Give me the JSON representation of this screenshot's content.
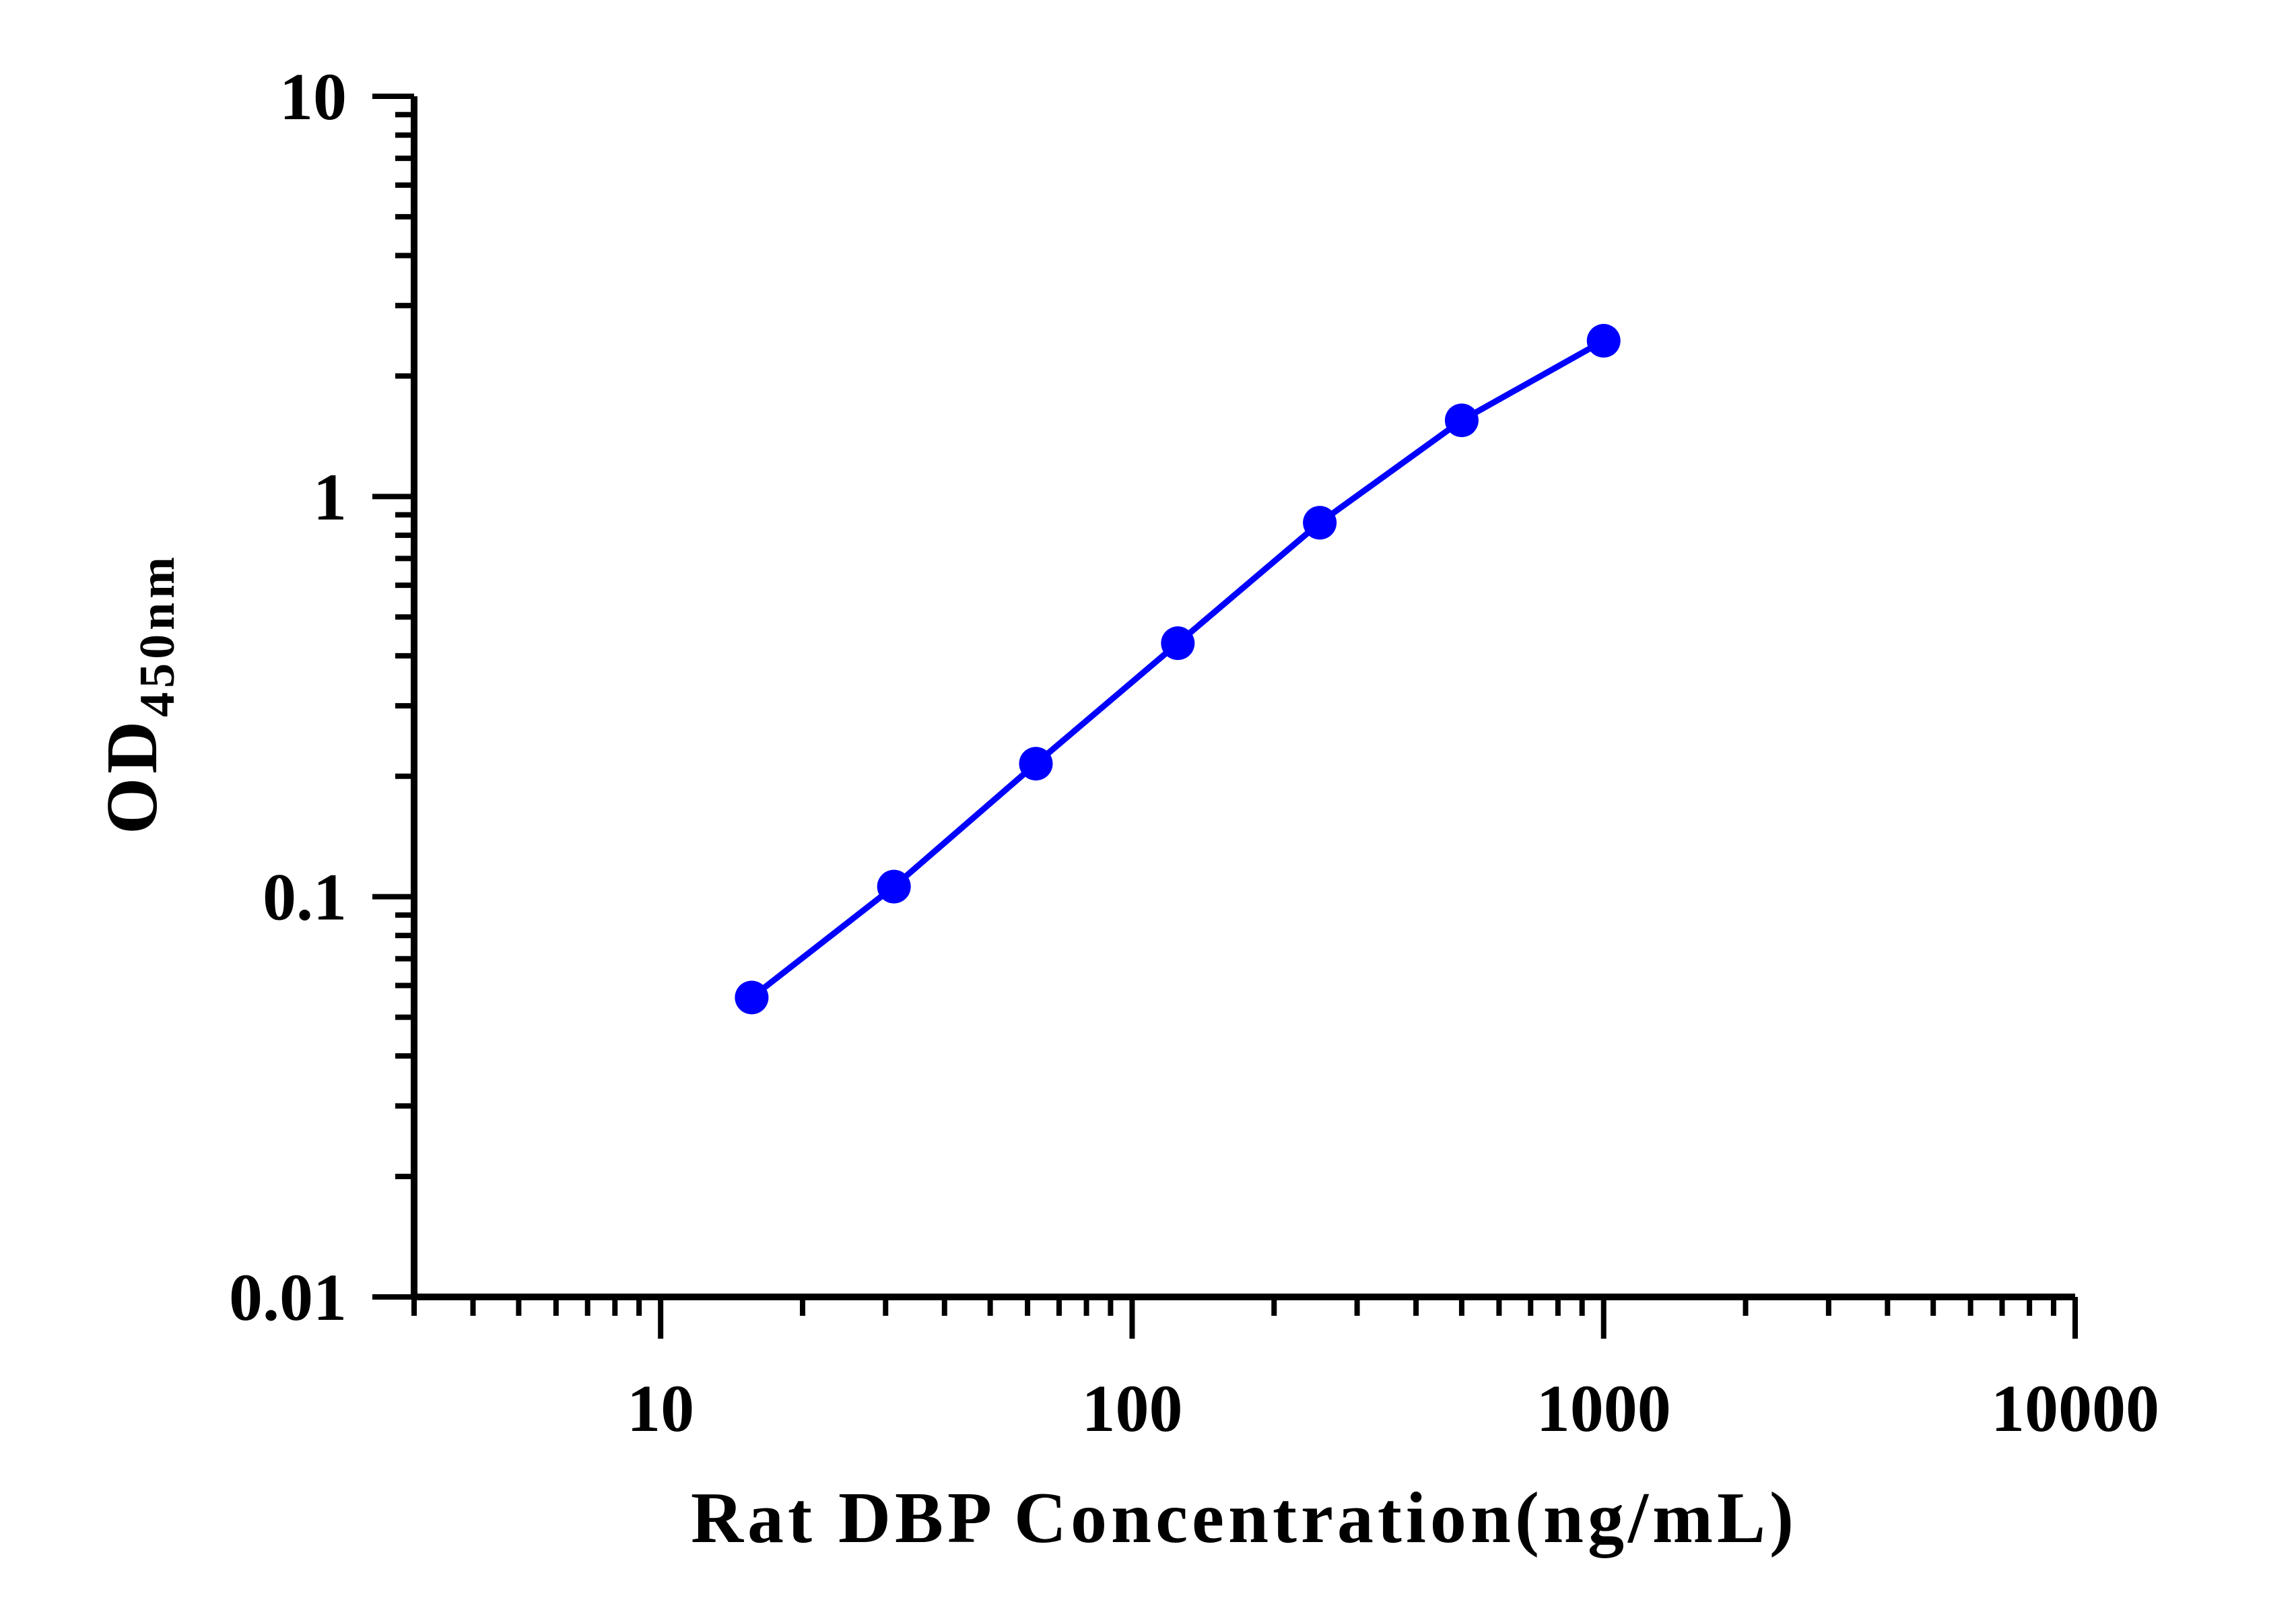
{
  "chart_data": {
    "type": "line",
    "xlabel": "Rat DBP Concentration(ng/mL)",
    "ylabel_main": "OD",
    "ylabel_sub": "450nm",
    "x_scale": "log",
    "y_scale": "log",
    "xlim": [
      3,
      10000
    ],
    "ylim": [
      0.01,
      10
    ],
    "x_tick_labels": [
      "10",
      "100",
      "1000",
      "10000"
    ],
    "y_tick_labels": [
      "0.01",
      "0.1",
      "1",
      "10"
    ],
    "grid": false,
    "series": [
      {
        "color": "#0000ff",
        "x": [
          15.6,
          31.25,
          62.5,
          125,
          250,
          500,
          1000
        ],
        "y": [
          0.056,
          0.106,
          0.215,
          0.43,
          0.86,
          1.55,
          2.45
        ]
      }
    ]
  }
}
